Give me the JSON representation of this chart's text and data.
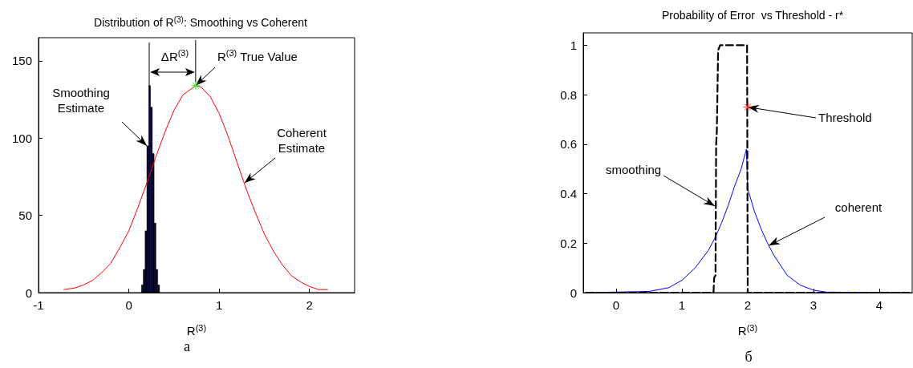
{
  "chart_data": [
    {
      "type": "histogram",
      "title": "Distribution of R$^{(3)}$: Smoothing vs Coherent",
      "xlabel": "R$^{(3)}$",
      "xlim": [
        -1,
        2.5
      ],
      "xticks": [
        -1,
        0,
        1,
        2
      ],
      "ylim": [
        0,
        165
      ],
      "yticks": [
        0,
        50,
        100,
        150
      ],
      "grid": false,
      "series": [
        {
          "color": "#000033",
          "bins": [
            0.14,
            0.16,
            0.18,
            0.2,
            0.22,
            0.24,
            0.26,
            0.28,
            0.3,
            0.32,
            0.34
          ],
          "values": [
            5,
            15,
            40,
            95,
            134,
            120,
            90,
            45,
            15,
            5
          ]
        },
        {
          "type": "line",
          "color": "#ff0000",
          "marker": "none",
          "x": [
            -0.72,
            -0.6,
            -0.5,
            -0.4,
            -0.3,
            -0.2,
            -0.1,
            0,
            0.1,
            0.2,
            0.3,
            0.4,
            0.5,
            0.6,
            0.74,
            0.8,
            0.9,
            1.0,
            1.1,
            1.2,
            1.3,
            1.4,
            1.5,
            1.6,
            1.7,
            1.8,
            1.9,
            2.0,
            2.1,
            2.2
          ],
          "values": [
            2,
            3,
            5,
            8,
            13,
            19,
            29,
            40,
            55,
            71,
            88,
            104,
            118,
            128,
            134,
            133,
            127,
            116,
            101,
            84,
            67,
            52,
            38,
            27,
            18,
            11,
            7,
            4,
            2,
            2
          ]
        },
        {
          "type": "scatter",
          "color": "#00ff00",
          "marker": "cross",
          "x": [
            0.74
          ],
          "values": [
            134
          ]
        }
      ],
      "annotations": [
        {
          "text": "ΔR$^{(3)}$",
          "x": 0.74,
          "y": 134
        },
        {
          "text": "R$^{(3)}$ True Value",
          "x": 0.74,
          "y": 134
        },
        {
          "text": "Smoothing\nEstimate",
          "x": 0.2,
          "y": 95
        },
        {
          "text": "Coherent\nEstimate",
          "x": 1.28,
          "y": 71
        },
        "a"
      ]
    },
    {
      "type": "line",
      "title": "Probability of Error  vs Threshold - r*",
      "xlabel": "R$^{(3)}$",
      "xlim": [
        -0.5,
        4.5
      ],
      "xticks": [
        0,
        1,
        2,
        3,
        4
      ],
      "ylim": [
        0,
        1.05
      ],
      "yticks": [
        0,
        0.2,
        0.4,
        0.6,
        0.8,
        1
      ],
      "grid": false,
      "series": [
        {
          "color": "#0000ff",
          "marker": "none",
          "line_style": "solid",
          "x": [
            -0.45,
            0.5,
            0.8,
            1.0,
            1.2,
            1.4,
            1.5,
            1.6,
            1.7,
            1.8,
            1.9,
            1.98,
            2.0,
            2.1,
            2.2,
            2.3,
            2.4,
            2.5,
            2.6,
            2.8,
            3.0,
            3.2,
            4.45
          ],
          "values": [
            0,
            0.005,
            0.02,
            0.05,
            0.1,
            0.17,
            0.22,
            0.28,
            0.35,
            0.43,
            0.5,
            0.58,
            0.42,
            0.33,
            0.26,
            0.2,
            0.15,
            0.11,
            0.07,
            0.03,
            0.01,
            0.002,
            0
          ]
        },
        {
          "color": "#000000",
          "marker": "none",
          "line_style": "dashed",
          "x": [
            -0.45,
            1.48,
            1.49,
            1.51,
            1.52,
            1.53,
            1.55,
            1.58,
            1.99,
            2.0,
            4.45
          ],
          "values": [
            0,
            0,
            0.06,
            0.07,
            0.6,
            0.65,
            0.98,
            1,
            1,
            0,
            0
          ]
        },
        {
          "type": "scatter",
          "color": "#ff0000",
          "marker": "cross",
          "x": [
            2.0
          ],
          "values": [
            0.75
          ]
        }
      ],
      "annotations": [
        {
          "text": "Threshold",
          "x": 2.0,
          "y": 0.75
        },
        {
          "text": "smoothing",
          "x": 1.5,
          "y": 0.35
        },
        {
          "text": "coherent",
          "x": 2.32,
          "y": 0.19
        },
        "б"
      ]
    }
  ]
}
